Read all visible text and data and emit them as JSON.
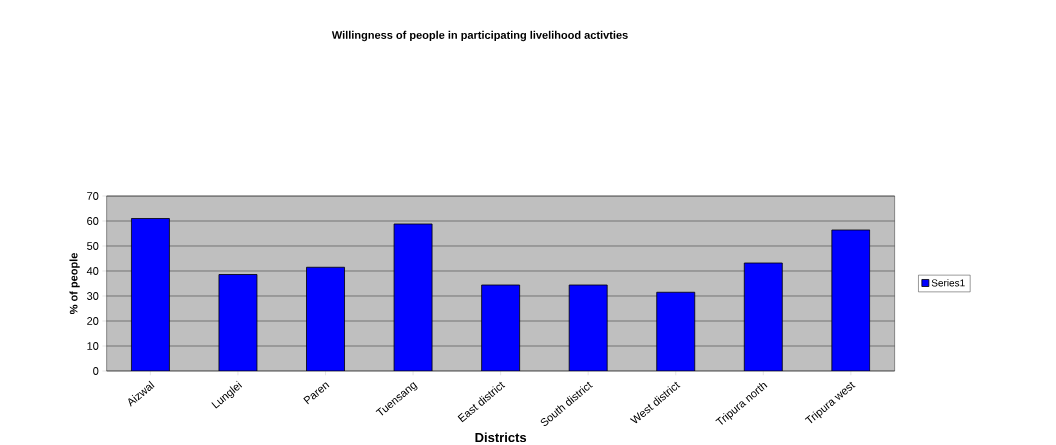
{
  "chart_data": {
    "type": "bar",
    "title": "Willingness of people in participating livelihood activties",
    "xlabel": "Districts",
    "ylabel": "% of people",
    "categories": [
      "Aizwal",
      "Lunglei",
      "Paren",
      "Tuensang",
      "East district",
      "South district",
      "West district",
      "Tripura north",
      "Tripura west"
    ],
    "series": [
      {
        "name": "Series1",
        "color": "#0000ff",
        "values": [
          61.0,
          38.6,
          41.5,
          58.8,
          34.4,
          34.4,
          31.5,
          43.2,
          56.4
        ]
      }
    ],
    "ylim": [
      0,
      70
    ],
    "yticks": [
      0,
      10,
      20,
      30,
      40,
      50,
      60,
      70
    ],
    "grid": "y",
    "legend": "right"
  }
}
